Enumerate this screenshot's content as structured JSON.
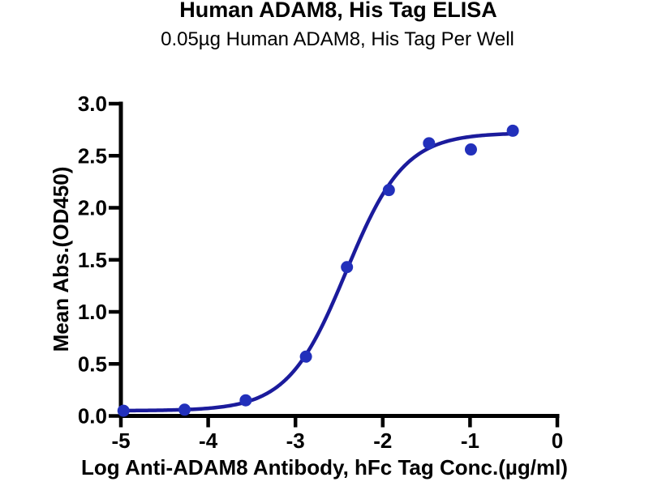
{
  "chart_data": {
    "type": "scatter",
    "title": "Human ADAM8, His Tag ELISA",
    "subtitle": "0.05µg Human ADAM8, His Tag Per Well",
    "xlabel": "Log Anti-ADAM8 Antibody, hFc Tag Conc.(µg/ml)",
    "ylabel": "Mean Abs.(OD450)",
    "xlim": [
      -5,
      0
    ],
    "ylim": [
      0,
      3
    ],
    "xticks": [
      -5,
      -4,
      -3,
      -2,
      -1,
      0
    ],
    "yticks": [
      0,
      0.5,
      1,
      1.5,
      2,
      2.5,
      3
    ],
    "grid": false,
    "legend": "none",
    "axis_color": "#000000",
    "series": [
      {
        "name": "Anti-ADAM8 Antibody, hFc Tag",
        "line_color": "#1b1b9c",
        "marker_color": "#2230bb",
        "marker": "circle",
        "points": [
          {
            "x": -4.97,
            "y": 0.05
          },
          {
            "x": -4.27,
            "y": 0.06
          },
          {
            "x": -3.57,
            "y": 0.15
          },
          {
            "x": -2.88,
            "y": 0.57
          },
          {
            "x": -2.41,
            "y": 1.43
          },
          {
            "x": -1.93,
            "y": 2.17
          },
          {
            "x": -1.47,
            "y": 2.62
          },
          {
            "x": -0.99,
            "y": 2.56
          },
          {
            "x": -0.51,
            "y": 2.74
          }
        ],
        "fit_curve": {
          "model": "4PL",
          "bottom": 0.05,
          "top": 2.72,
          "logEC50": -2.42,
          "hillslope": 1.3,
          "x_start": -5.0,
          "x_end": -0.49
        }
      }
    ]
  }
}
